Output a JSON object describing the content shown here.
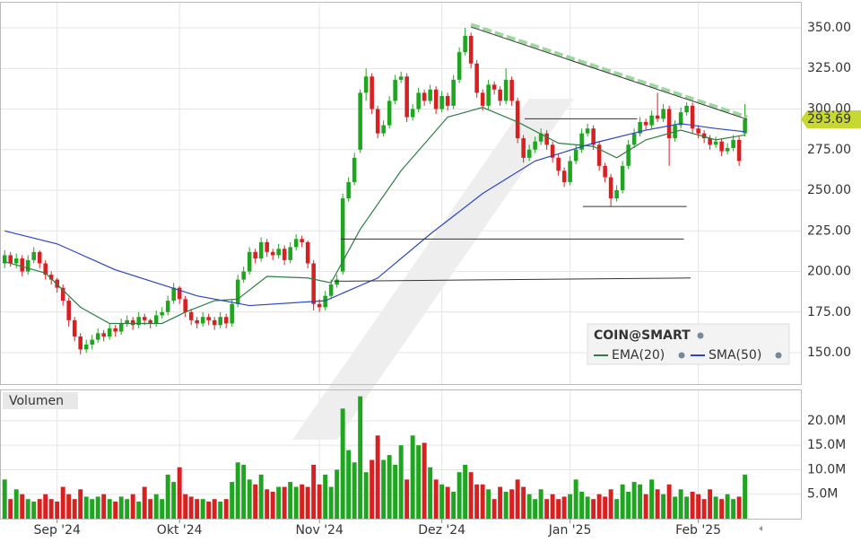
{
  "chart_data": {
    "type": "candlestick",
    "title": "COIN@SMART",
    "colors": {
      "up": "#1fa51f",
      "down": "#d92020"
    },
    "xlim": [
      -0.8,
      136.6
    ],
    "xticks": [
      {
        "value": 9,
        "label": "Sep '24"
      },
      {
        "value": 30,
        "label": "Okt '24"
      },
      {
        "value": 54,
        "label": "Nov '24"
      },
      {
        "value": 75,
        "label": "Dez '24"
      },
      {
        "value": 97,
        "label": "Jan '25"
      },
      {
        "value": 119,
        "label": "Feb '25"
      }
    ],
    "ylim": [
      130.7,
      366
    ],
    "yticks": [
      {
        "value": 150,
        "label": "150.00"
      },
      {
        "value": 175,
        "label": "175.00"
      },
      {
        "value": 200,
        "label": "200.00"
      },
      {
        "value": 225,
        "label": "225.00"
      },
      {
        "value": 250,
        "label": "250.00"
      },
      {
        "value": 275,
        "label": "275.00"
      },
      {
        "value": 300,
        "label": "300.00"
      },
      {
        "value": 325,
        "label": "325.00"
      },
      {
        "value": 350,
        "label": "350.00"
      }
    ],
    "grid": true,
    "ohlc": [
      [
        205,
        213,
        202,
        210
      ],
      [
        210,
        212,
        203,
        205
      ],
      [
        205,
        211,
        202,
        208
      ],
      [
        208,
        210,
        197,
        200
      ],
      [
        200,
        210,
        198,
        207
      ],
      [
        207,
        215,
        205,
        212
      ],
      [
        212,
        213,
        202,
        205
      ],
      [
        205,
        207,
        195,
        198
      ],
      [
        198,
        200,
        192,
        195
      ],
      [
        195,
        196,
        187,
        190
      ],
      [
        190,
        192,
        179,
        182
      ],
      [
        182,
        184,
        166,
        170
      ],
      [
        170,
        172,
        157,
        160
      ],
      [
        160,
        162,
        149,
        152
      ],
      [
        152,
        158,
        150,
        155
      ],
      [
        155,
        161,
        152,
        158
      ],
      [
        158,
        165,
        156,
        162
      ],
      [
        162,
        164,
        157,
        160
      ],
      [
        160,
        168,
        158,
        165
      ],
      [
        165,
        167,
        160,
        163
      ],
      [
        163,
        171,
        161,
        168
      ],
      [
        168,
        173,
        166,
        170
      ],
      [
        170,
        172,
        164,
        167
      ],
      [
        167,
        175,
        165,
        172
      ],
      [
        172,
        174,
        167,
        170
      ],
      [
        170,
        171,
        165,
        168
      ],
      [
        168,
        176,
        166,
        173
      ],
      [
        173,
        178,
        171,
        175
      ],
      [
        175,
        185,
        173,
        182
      ],
      [
        182,
        193,
        180,
        190
      ],
      [
        190,
        191,
        180,
        183
      ],
      [
        183,
        185,
        172,
        175
      ],
      [
        175,
        177,
        167,
        170
      ],
      [
        170,
        172,
        165,
        168
      ],
      [
        168,
        175,
        166,
        172
      ],
      [
        172,
        174,
        167,
        170
      ],
      [
        170,
        172,
        164,
        167
      ],
      [
        167,
        175,
        165,
        172
      ],
      [
        172,
        174,
        165,
        168
      ],
      [
        168,
        183,
        166,
        180
      ],
      [
        180,
        198,
        178,
        195
      ],
      [
        195,
        203,
        193,
        200
      ],
      [
        200,
        215,
        198,
        212
      ],
      [
        212,
        214,
        205,
        208
      ],
      [
        208,
        221,
        206,
        218
      ],
      [
        218,
        220,
        209,
        212
      ],
      [
        212,
        214,
        207,
        210
      ],
      [
        210,
        217,
        208,
        214
      ],
      [
        214,
        216,
        204,
        207
      ],
      [
        207,
        218,
        205,
        215
      ],
      [
        215,
        223,
        213,
        220
      ],
      [
        220,
        222,
        215,
        218
      ],
      [
        218,
        219,
        202,
        205
      ],
      [
        205,
        207,
        176,
        180
      ],
      [
        180,
        183,
        175,
        178
      ],
      [
        178,
        188,
        176,
        185
      ],
      [
        185,
        195,
        183,
        192
      ],
      [
        192,
        198,
        190,
        195
      ],
      [
        200,
        248,
        198,
        245
      ],
      [
        245,
        258,
        243,
        255
      ],
      [
        255,
        273,
        253,
        270
      ],
      [
        275,
        312,
        273,
        310
      ],
      [
        310,
        325,
        305,
        320
      ],
      [
        320,
        322,
        297,
        300
      ],
      [
        300,
        302,
        282,
        285
      ],
      [
        285,
        293,
        283,
        290
      ],
      [
        290,
        308,
        288,
        305
      ],
      [
        305,
        321,
        303,
        318
      ],
      [
        318,
        323,
        316,
        320
      ],
      [
        320,
        322,
        292,
        295
      ],
      [
        295,
        303,
        293,
        300
      ],
      [
        300,
        313,
        298,
        310
      ],
      [
        310,
        312,
        302,
        305
      ],
      [
        305,
        315,
        303,
        312
      ],
      [
        312,
        314,
        297,
        300
      ],
      [
        300,
        311,
        298,
        308
      ],
      [
        308,
        310,
        299,
        302
      ],
      [
        302,
        321,
        300,
        318
      ],
      [
        318,
        338,
        316,
        335
      ],
      [
        335,
        350,
        333,
        345
      ],
      [
        345,
        347,
        325,
        328
      ],
      [
        328,
        330,
        307,
        310
      ],
      [
        310,
        312,
        299,
        302
      ],
      [
        302,
        318,
        300,
        315
      ],
      [
        315,
        317,
        309,
        312
      ],
      [
        312,
        314,
        302,
        305
      ],
      [
        305,
        325,
        303,
        318
      ],
      [
        318,
        320,
        302,
        305
      ],
      [
        305,
        307,
        279,
        282
      ],
      [
        282,
        284,
        267,
        270
      ],
      [
        270,
        278,
        268,
        275
      ],
      [
        275,
        283,
        273,
        280
      ],
      [
        280,
        288,
        278,
        285
      ],
      [
        285,
        287,
        275,
        278
      ],
      [
        278,
        280,
        267,
        270
      ],
      [
        270,
        272,
        259,
        262
      ],
      [
        262,
        264,
        252,
        255
      ],
      [
        255,
        271,
        253,
        268
      ],
      [
        268,
        278,
        266,
        275
      ],
      [
        275,
        288,
        273,
        285
      ],
      [
        285,
        291,
        283,
        288
      ],
      [
        288,
        290,
        275,
        278
      ],
      [
        278,
        280,
        262,
        265
      ],
      [
        265,
        267,
        255,
        258
      ],
      [
        258,
        260,
        240,
        245
      ],
      [
        245,
        253,
        243,
        250
      ],
      [
        250,
        268,
        248,
        265
      ],
      [
        265,
        281,
        263,
        278
      ],
      [
        278,
        288,
        276,
        285
      ],
      [
        285,
        295,
        283,
        292
      ],
      [
        292,
        294,
        287,
        290
      ],
      [
        290,
        299,
        288,
        296
      ],
      [
        296,
        310,
        292,
        294
      ],
      [
        294,
        303,
        292,
        300
      ],
      [
        300,
        302,
        265,
        282
      ],
      [
        282,
        293,
        280,
        290
      ],
      [
        290,
        301,
        288,
        298
      ],
      [
        298,
        304,
        296,
        302
      ],
      [
        302,
        304,
        285,
        288
      ],
      [
        288,
        290,
        282,
        285
      ],
      [
        285,
        287,
        279,
        282
      ],
      [
        282,
        284,
        275,
        278
      ],
      [
        278,
        283,
        276,
        280
      ],
      [
        280,
        282,
        271,
        274
      ],
      [
        274,
        279,
        272,
        276
      ],
      [
        276,
        284,
        274,
        281
      ],
      [
        281,
        283,
        265,
        268
      ],
      [
        285,
        303,
        283,
        293.69
      ]
    ],
    "indicators": [
      {
        "name": "EMA(20)",
        "color": "#2e7d46",
        "x": [
          0,
          7,
          13,
          18,
          27,
          31,
          36,
          40,
          45,
          52,
          56,
          61,
          68,
          76,
          82,
          88,
          95,
          101,
          105,
          110,
          116,
          122,
          127
        ],
        "values": [
          206,
          199,
          178,
          168,
          168,
          175,
          182,
          183,
          197,
          196,
          193,
          226,
          262,
          295,
          301,
          292,
          279,
          277,
          270,
          281,
          287,
          281,
          284
        ]
      },
      {
        "name": "SMA(50)",
        "color": "#2a45c8",
        "x": [
          0,
          9,
          19,
          33,
          42,
          55,
          64,
          73,
          82,
          91,
          101,
          110,
          116,
          122,
          127
        ],
        "values": [
          225,
          217,
          201,
          185,
          179,
          182,
          196,
          223,
          248,
          268,
          279,
          287,
          291,
          288,
          286
        ]
      }
    ],
    "trendlines": [
      {
        "x": [
          80,
          127.4
        ],
        "values": [
          352,
          295
        ],
        "color": "#9fd89f",
        "style": "dashed"
      },
      {
        "x": [
          80,
          127.4
        ],
        "values": [
          350.5,
          293.6
        ],
        "color": "#333333",
        "style": "solid"
      },
      {
        "x": [
          89.2,
          108.5
        ],
        "values": [
          294,
          294
        ],
        "color": "#333333",
        "style": "solid"
      },
      {
        "x": [
          99.2,
          117
        ],
        "values": [
          240,
          240
        ],
        "color": "#333333",
        "style": "solid"
      },
      {
        "x": [
          57.7,
          116.5
        ],
        "values": [
          220,
          220
        ],
        "color": "#333333",
        "style": "solid"
      },
      {
        "x": [
          56.5,
          117.7
        ],
        "values": [
          194,
          196
        ],
        "color": "#333333",
        "style": "solid"
      }
    ],
    "volume": {
      "title": "Volumen",
      "ylim": [
        0,
        26.4
      ],
      "yticks": [
        {
          "value": 5,
          "label": "5.0M"
        },
        {
          "value": 10,
          "label": "10.0M"
        },
        {
          "value": 15,
          "label": "15.0M"
        },
        {
          "value": 20,
          "label": "20.0M"
        }
      ],
      "values": [
        8,
        4,
        6,
        5,
        4,
        3.5,
        4,
        5,
        4,
        3.5,
        6.5,
        5,
        4,
        6,
        4.5,
        4,
        4.5,
        5,
        4,
        3.5,
        4.5,
        4,
        5,
        3.5,
        6.5,
        4,
        5,
        4,
        9,
        7.5,
        10.5,
        5,
        4.5,
        4,
        4,
        3.5,
        4,
        3.5,
        4,
        7.5,
        11.5,
        11,
        8,
        7,
        9,
        6,
        5.5,
        6.5,
        6.5,
        7.5,
        6.5,
        7,
        6.5,
        11,
        7,
        9,
        6.5,
        10,
        22.5,
        14,
        11.5,
        25,
        9.5,
        12,
        17,
        12,
        13,
        11,
        15,
        8,
        17,
        15,
        15.5,
        10.5,
        8,
        7,
        6.5,
        5.5,
        9.5,
        11,
        9.5,
        7,
        7,
        6,
        4,
        6.5,
        5.5,
        6,
        8,
        6.5,
        5,
        4,
        6,
        4,
        5,
        4,
        4.5,
        5,
        8,
        5.5,
        4.5,
        4,
        5,
        4.5,
        6,
        4,
        7,
        5.5,
        7.5,
        7,
        5,
        8,
        6,
        5,
        7,
        4.5,
        6,
        4.5,
        5.5,
        5,
        4,
        6,
        4.5,
        4,
        5,
        4,
        4.5,
        9
      ]
    }
  }
}
